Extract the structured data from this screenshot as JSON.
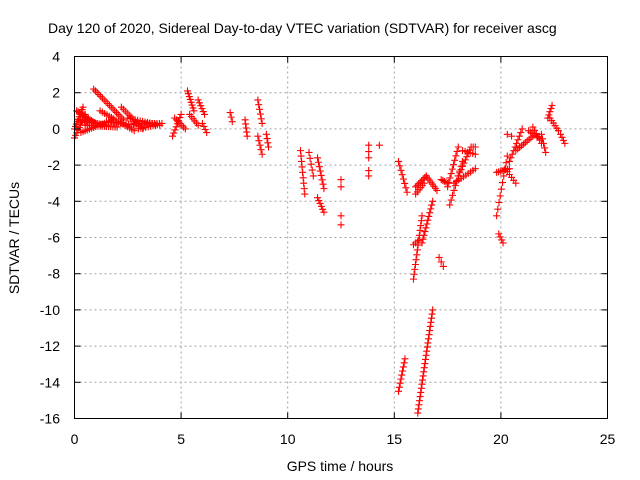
{
  "chart_data": {
    "type": "scatter",
    "title": "Day 120 of 2020, Sidereal Day-to-day VTEC variation (SDTVAR) for receiver ascg",
    "xlabel": "GPS time / hours",
    "ylabel": "SDTVAR / TECUs",
    "xlim": [
      0,
      25
    ],
    "ylim": [
      -16,
      4
    ],
    "xticks": [
      0,
      5,
      10,
      15,
      20,
      25
    ],
    "xtick_labels": [
      "0",
      "5",
      "10",
      "15",
      "20",
      "25"
    ],
    "yticks": [
      4,
      2,
      0,
      -2,
      -4,
      -6,
      -8,
      -10,
      -12,
      -14,
      -16
    ],
    "ytick_labels": [
      "4",
      "2",
      "0",
      "-2",
      "-4",
      "-6",
      "-8",
      "-10",
      "-12",
      "-14",
      "-16"
    ],
    "grid": true,
    "marker": "+",
    "marker_color": "#ff0000",
    "segments": [
      {
        "x0": 0.0,
        "y0": 0.0,
        "x1": 0.4,
        "y1": 1.2,
        "n": 10
      },
      {
        "x0": 0.0,
        "y0": -0.5,
        "x1": 0.5,
        "y1": 0.8,
        "n": 10
      },
      {
        "x0": 0.1,
        "y0": 1.0,
        "x1": 1.0,
        "y1": 0.3,
        "n": 14
      },
      {
        "x0": 0.2,
        "y0": 0.5,
        "x1": 1.5,
        "y1": 0.2,
        "n": 16
      },
      {
        "x0": 0.3,
        "y0": -0.2,
        "x1": 1.8,
        "y1": 0.5,
        "n": 16
      },
      {
        "x0": 0.5,
        "y0": 0.2,
        "x1": 2.0,
        "y1": 0.1,
        "n": 16
      },
      {
        "x0": 0.9,
        "y0": 2.2,
        "x1": 2.3,
        "y1": 0.5,
        "n": 18
      },
      {
        "x0": 1.2,
        "y0": 1.0,
        "x1": 2.8,
        "y1": -0.1,
        "n": 16
      },
      {
        "x0": 1.5,
        "y0": 0.4,
        "x1": 3.0,
        "y1": 0.2,
        "n": 14
      },
      {
        "x0": 2.2,
        "y0": 1.2,
        "x1": 3.2,
        "y1": 0.0,
        "n": 12
      },
      {
        "x0": 2.5,
        "y0": 0.6,
        "x1": 4.0,
        "y1": 0.2,
        "n": 14
      },
      {
        "x0": 2.8,
        "y0": 0.3,
        "x1": 4.1,
        "y1": 0.3,
        "n": 12
      },
      {
        "x0": 3.0,
        "y0": 0.0,
        "x1": 3.8,
        "y1": 0.2,
        "n": 8
      },
      {
        "x0": 4.6,
        "y0": -0.4,
        "x1": 5.0,
        "y1": 0.8,
        "n": 8
      },
      {
        "x0": 4.7,
        "y0": 0.6,
        "x1": 5.2,
        "y1": 0.0,
        "n": 7
      },
      {
        "x0": 5.3,
        "y0": 2.1,
        "x1": 5.6,
        "y1": 1.0,
        "n": 8
      },
      {
        "x0": 5.4,
        "y0": 0.8,
        "x1": 5.8,
        "y1": 0.2,
        "n": 6
      },
      {
        "x0": 5.8,
        "y0": 1.6,
        "x1": 6.1,
        "y1": 0.8,
        "n": 6
      },
      {
        "x0": 6.0,
        "y0": 0.3,
        "x1": 6.2,
        "y1": -0.2,
        "n": 4
      },
      {
        "x0": 7.3,
        "y0": 0.9,
        "x1": 7.4,
        "y1": 0.4,
        "n": 3
      },
      {
        "x0": 8.0,
        "y0": 0.5,
        "x1": 8.1,
        "y1": -0.4,
        "n": 5
      },
      {
        "x0": 8.6,
        "y0": 1.6,
        "x1": 8.8,
        "y1": 0.3,
        "n": 6
      },
      {
        "x0": 8.6,
        "y0": -0.4,
        "x1": 8.8,
        "y1": -1.4,
        "n": 5
      },
      {
        "x0": 9.0,
        "y0": -0.3,
        "x1": 9.1,
        "y1": -1.0,
        "n": 4
      },
      {
        "x0": 10.6,
        "y0": -1.2,
        "x1": 10.8,
        "y1": -3.6,
        "n": 9
      },
      {
        "x0": 11.0,
        "y0": -1.3,
        "x1": 11.2,
        "y1": -2.6,
        "n": 5
      },
      {
        "x0": 11.4,
        "y0": -1.6,
        "x1": 11.7,
        "y1": -3.3,
        "n": 8
      },
      {
        "x0": 11.4,
        "y0": -3.8,
        "x1": 11.7,
        "y1": -4.6,
        "n": 6
      },
      {
        "x0": 12.5,
        "y0": -2.8,
        "x1": 12.5,
        "y1": -3.2,
        "n": 2
      },
      {
        "x0": 12.5,
        "y0": -4.8,
        "x1": 12.5,
        "y1": -5.3,
        "n": 2
      },
      {
        "x0": 13.8,
        "y0": -0.9,
        "x1": 13.8,
        "y1": -1.6,
        "n": 3
      },
      {
        "x0": 13.8,
        "y0": -2.3,
        "x1": 13.8,
        "y1": -2.6,
        "n": 2
      },
      {
        "x0": 14.3,
        "y0": -0.9,
        "x1": 14.3,
        "y1": -0.9,
        "n": 1
      },
      {
        "x0": 15.2,
        "y0": -1.8,
        "x1": 15.6,
        "y1": -3.5,
        "n": 8
      },
      {
        "x0": 15.2,
        "y0": -14.5,
        "x1": 15.5,
        "y1": -12.7,
        "n": 9
      },
      {
        "x0": 15.9,
        "y0": -8.3,
        "x1": 16.3,
        "y1": -4.8,
        "n": 14
      },
      {
        "x0": 15.9,
        "y0": -6.4,
        "x1": 16.1,
        "y1": -6.2,
        "n": 3
      },
      {
        "x0": 16.0,
        "y0": -3.2,
        "x1": 16.5,
        "y1": -2.6,
        "n": 8
      },
      {
        "x0": 16.1,
        "y0": -15.7,
        "x1": 16.8,
        "y1": -10.0,
        "n": 26
      },
      {
        "x0": 16.3,
        "y0": -6.3,
        "x1": 16.8,
        "y1": -4.0,
        "n": 12
      },
      {
        "x0": 16.5,
        "y0": -2.6,
        "x1": 17.0,
        "y1": -3.4,
        "n": 8
      },
      {
        "x0": 17.2,
        "y0": -2.8,
        "x1": 17.5,
        "y1": -3.0,
        "n": 5
      },
      {
        "x0": 17.1,
        "y0": -7.1,
        "x1": 17.3,
        "y1": -7.6,
        "n": 3
      },
      {
        "x0": 17.5,
        "y0": -3.2,
        "x1": 18.0,
        "y1": -1.0,
        "n": 10
      },
      {
        "x0": 17.6,
        "y0": -4.2,
        "x1": 18.2,
        "y1": -1.8,
        "n": 10
      },
      {
        "x0": 18.0,
        "y0": -2.6,
        "x1": 18.6,
        "y1": -1.0,
        "n": 10
      },
      {
        "x0": 17.8,
        "y0": -3.0,
        "x1": 18.8,
        "y1": -2.2,
        "n": 10
      },
      {
        "x0": 18.2,
        "y0": -1.2,
        "x1": 18.8,
        "y1": -1.4,
        "n": 6
      },
      {
        "x0": 19.8,
        "y0": -2.4,
        "x1": 20.4,
        "y1": -2.2,
        "n": 8
      },
      {
        "x0": 19.9,
        "y0": -5.8,
        "x1": 20.1,
        "y1": -6.3,
        "n": 4
      },
      {
        "x0": 19.8,
        "y0": -4.8,
        "x1": 20.3,
        "y1": -1.5,
        "n": 10
      },
      {
        "x0": 20.2,
        "y0": -2.2,
        "x1": 20.7,
        "y1": -3.0,
        "n": 6
      },
      {
        "x0": 20.3,
        "y0": -0.3,
        "x1": 20.5,
        "y1": -0.4,
        "n": 2
      },
      {
        "x0": 20.4,
        "y0": -1.8,
        "x1": 21.0,
        "y1": 0.0,
        "n": 10
      },
      {
        "x0": 20.7,
        "y0": -1.2,
        "x1": 21.5,
        "y1": -0.4,
        "n": 10
      },
      {
        "x0": 21.3,
        "y0": -0.1,
        "x1": 21.8,
        "y1": -0.5,
        "n": 6
      },
      {
        "x0": 21.5,
        "y0": 0.1,
        "x1": 21.9,
        "y1": -0.8,
        "n": 6
      },
      {
        "x0": 21.9,
        "y0": -0.3,
        "x1": 22.1,
        "y1": -1.3,
        "n": 5
      },
      {
        "x0": 22.2,
        "y0": 0.6,
        "x1": 22.4,
        "y1": 1.3,
        "n": 5
      },
      {
        "x0": 22.3,
        "y0": 0.6,
        "x1": 22.7,
        "y1": -0.1,
        "n": 6
      },
      {
        "x0": 22.8,
        "y0": -0.3,
        "x1": 23.0,
        "y1": -0.8,
        "n": 4
      },
      {
        "x0": 16.0,
        "y0": -3.6,
        "x1": 16.4,
        "y1": -3.0,
        "n": 6
      },
      {
        "x0": 18.6,
        "y0": -1.0,
        "x1": 18.8,
        "y1": -1.0,
        "n": 3
      }
    ]
  }
}
